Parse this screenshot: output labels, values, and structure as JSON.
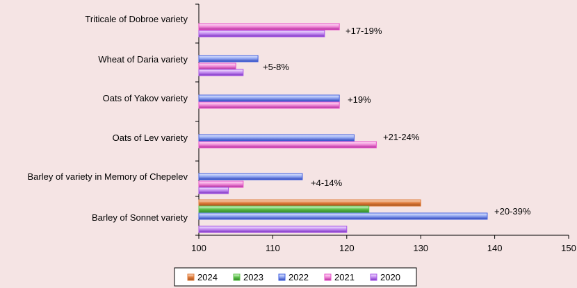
{
  "chart_data": {
    "type": "bar",
    "orientation": "horizontal",
    "title": "",
    "xlabel": "",
    "ylabel": "",
    "xlim": [
      100,
      150
    ],
    "x_ticks": [
      "100",
      "110",
      "120",
      "130",
      "140",
      "150"
    ],
    "grid": false,
    "legend_position": "bottom",
    "categories": [
      "Triticale of Dobroe variety",
      "Wheat of Daria variety",
      "Oats of  Yakov variety",
      "Oats of Lev variety",
      "Barley of variety in Memory of Chepelev",
      "Barley of Sonnet variety"
    ],
    "series": [
      {
        "name": "2024",
        "color": "#e07b39",
        "values": [
          null,
          null,
          null,
          null,
          null,
          130
        ]
      },
      {
        "name": "2023",
        "color": "#5cc24a",
        "values": [
          null,
          null,
          null,
          null,
          null,
          123
        ]
      },
      {
        "name": "2022",
        "color": "#3f5fe0",
        "values": [
          null,
          108,
          119,
          121,
          114,
          139
        ]
      },
      {
        "name": "2021",
        "color": "#e84fc8",
        "values": [
          119,
          105,
          119,
          124,
          106,
          null
        ]
      },
      {
        "name": "2020",
        "color": "#a855e8",
        "values": [
          117,
          106,
          null,
          null,
          104,
          120
        ]
      }
    ],
    "annotations": [
      "+17-19%",
      "+5-8%",
      "+19%",
      "+21-24%",
      "+4-14%",
      "+20-39%"
    ]
  }
}
